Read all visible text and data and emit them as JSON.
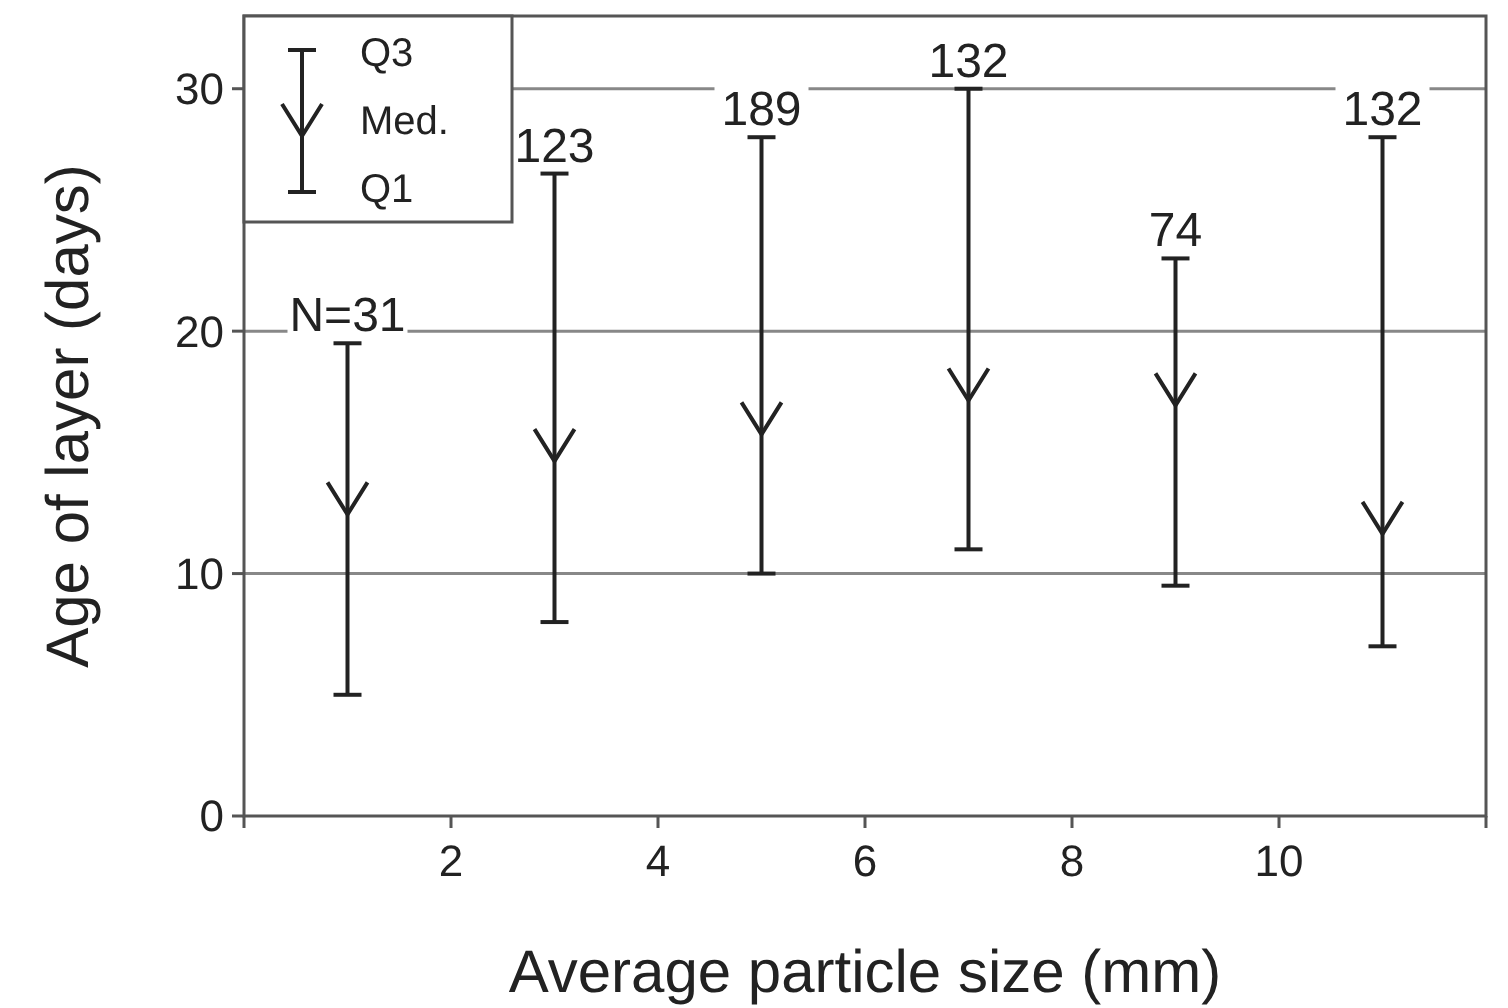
{
  "chart_data": {
    "type": "scatter",
    "xlabel": "Average particle size (mm)",
    "ylabel": "Age of layer (days)",
    "x": [
      1,
      3,
      5,
      7,
      9,
      11
    ],
    "series": [
      {
        "name": "Med.",
        "color": "#222222",
        "values": [
          13.1,
          15.3,
          16.4,
          17.8,
          17.6,
          12.3
        ],
        "errors": [
          [
            5,
            19.5
          ],
          [
            8,
            26.5
          ],
          [
            10,
            28
          ],
          [
            11,
            30
          ],
          [
            9.5,
            23
          ],
          [
            7,
            28
          ]
        ]
      }
    ],
    "xlim": [
      0,
      12
    ],
    "xticks": [
      {
        "value": 0,
        "label": null
      },
      2,
      4,
      6,
      8,
      10,
      {
        "value": 12,
        "label": null
      }
    ],
    "ylim": [
      0,
      33
    ],
    "yticks": [
      0,
      10,
      20,
      30
    ],
    "grid": "y",
    "legend": "top left",
    "annotations": [
      "Q3",
      "Q1",
      {
        "text": "N=31",
        "x": 1,
        "y": 19.5
      },
      {
        "text": "123",
        "x": 3,
        "y": 26.5
      },
      {
        "text": "189",
        "x": 5,
        "y": 28
      },
      {
        "text": "132",
        "x": 7,
        "y": 30
      },
      {
        "text": "74",
        "x": 9,
        "y": 23
      },
      {
        "text": "132",
        "x": 11,
        "y": 28
      }
    ]
  }
}
